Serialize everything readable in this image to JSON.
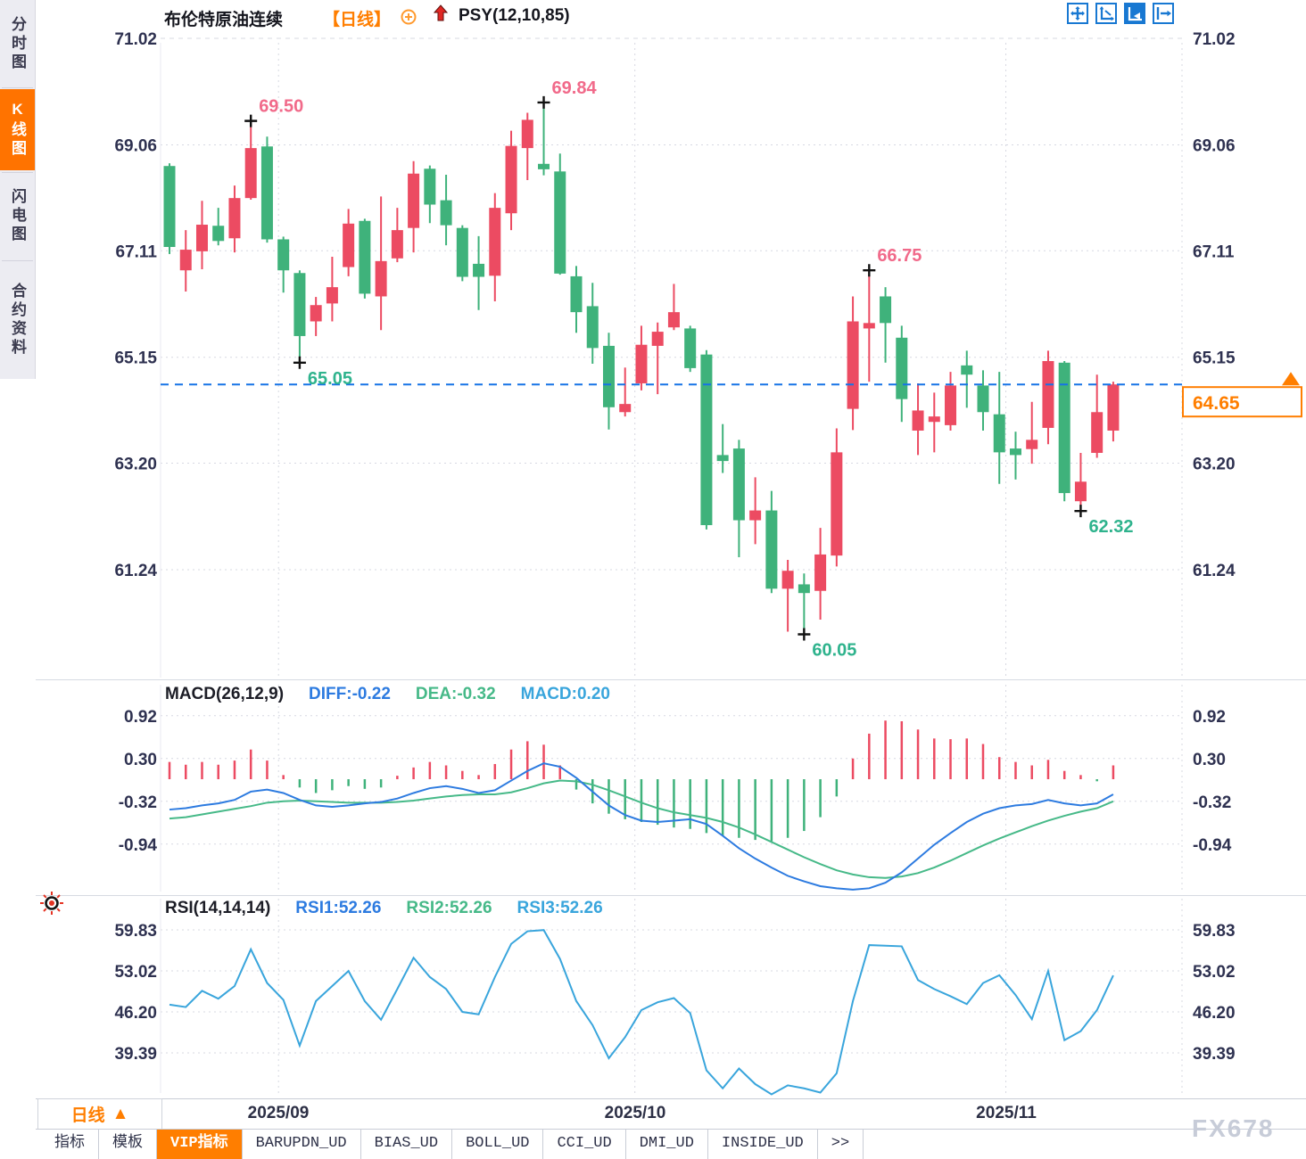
{
  "sidebar": {
    "tabs": [
      {
        "label": "分时图",
        "active": false
      },
      {
        "label": "K线图",
        "active": true
      },
      {
        "label": "闪电图",
        "active": false
      },
      {
        "label": "合约资料",
        "active": false
      }
    ]
  },
  "header": {
    "instrument": "布伦特原油连续",
    "period_tag": "【日线】",
    "indicator": "PSY(12,10,85)",
    "toolbar_icons": [
      "pan-icon",
      "axis-zoom-icon",
      "auto-scale-icon",
      "go-to-latest-icon"
    ]
  },
  "footer": {
    "period_label": "日线",
    "period_arrow": "▲",
    "months": [
      "2025/09",
      "2025/10",
      "2025/11"
    ],
    "tabs": [
      {
        "label": "指标",
        "active": false
      },
      {
        "label": "模板",
        "active": false
      },
      {
        "label": "VIP指标",
        "active": true
      },
      {
        "label": "BARUPDN_UD",
        "active": false
      },
      {
        "label": "BIAS_UD",
        "active": false
      },
      {
        "label": "BOLL_UD",
        "active": false
      },
      {
        "label": "CCI_UD",
        "active": false
      },
      {
        "label": "DMI_UD",
        "active": false
      },
      {
        "label": "INSIDE_UD",
        "active": false
      },
      {
        "label": ">>",
        "active": false
      }
    ],
    "watermark": "FX678"
  },
  "colors": {
    "up": "#ec4b62",
    "down": "#3fb27b",
    "diff_line": "#2d7be0",
    "dea_line": "#46b988",
    "rsi_line": "#39a5dc",
    "accent_orange": "#ff7e00",
    "current_price_line": "#1673e6",
    "toolbar_blue": "#1878d2",
    "annotation_high": "#f16a8a",
    "annotation_low": "#2fb38d",
    "grid": "#d7d8e2",
    "axis_text": "#2e3150"
  },
  "chart_data": [
    {
      "type": "candlestick",
      "title": "布伦特原油连续 日线",
      "y_ticks": [
        71.02,
        69.06,
        67.11,
        65.15,
        63.2,
        61.24
      ],
      "ylim": [
        60.0,
        71.35
      ],
      "month_lines": [
        6.7,
        28.6,
        51.4
      ],
      "candles": [
        [
          68.67,
          67.18,
          68.72,
          67.05
        ],
        [
          66.75,
          67.13,
          67.49,
          66.36
        ],
        [
          67.1,
          67.59,
          68.03,
          66.77
        ],
        [
          67.57,
          67.29,
          67.9,
          67.21
        ],
        [
          67.34,
          68.08,
          68.31,
          67.08
        ],
        [
          68.08,
          69.0,
          69.5,
          68.05
        ],
        [
          69.03,
          67.32,
          69.21,
          67.26
        ],
        [
          67.32,
          66.75,
          67.37,
          66.34
        ],
        [
          66.7,
          65.54,
          66.75,
          65.05
        ],
        [
          65.81,
          66.11,
          66.26,
          65.54
        ],
        [
          66.14,
          66.44,
          67.0,
          65.81
        ],
        [
          66.81,
          67.61,
          67.88,
          66.64
        ],
        [
          67.66,
          66.32,
          67.7,
          66.23
        ],
        [
          66.27,
          66.92,
          68.11,
          65.65
        ],
        [
          66.97,
          67.49,
          67.9,
          66.9
        ],
        [
          67.53,
          68.53,
          68.76,
          67.08
        ],
        [
          68.62,
          67.96,
          68.68,
          67.62
        ],
        [
          68.04,
          67.58,
          68.51,
          67.21
        ],
        [
          67.53,
          66.63,
          67.58,
          66.55
        ],
        [
          66.87,
          66.63,
          67.38,
          66.02
        ],
        [
          66.65,
          67.9,
          68.17,
          66.18
        ],
        [
          67.8,
          69.04,
          69.32,
          67.49
        ],
        [
          69.0,
          69.52,
          69.65,
          68.41
        ],
        [
          68.71,
          68.61,
          69.84,
          68.5
        ],
        [
          68.57,
          66.69,
          68.9,
          66.67
        ],
        [
          66.64,
          65.98,
          66.83,
          65.6
        ],
        [
          66.09,
          65.32,
          66.52,
          65.03
        ],
        [
          65.36,
          64.23,
          65.6,
          63.82
        ],
        [
          64.14,
          64.29,
          64.96,
          64.06
        ],
        [
          64.67,
          65.38,
          65.73,
          64.54
        ],
        [
          65.36,
          65.62,
          65.79,
          64.47
        ],
        [
          65.7,
          65.98,
          66.5,
          65.65
        ],
        [
          65.68,
          64.95,
          65.73,
          64.88
        ],
        [
          65.2,
          62.06,
          65.28,
          61.98
        ],
        [
          63.35,
          63.24,
          63.92,
          63.02
        ],
        [
          63.47,
          62.15,
          63.63,
          61.47
        ],
        [
          62.15,
          62.33,
          62.94,
          61.71
        ],
        [
          62.33,
          60.89,
          62.69,
          60.81
        ],
        [
          60.89,
          61.22,
          61.42,
          60.1
        ],
        [
          60.97,
          60.81,
          61.17,
          60.05
        ],
        [
          60.85,
          61.52,
          62.01,
          60.32
        ],
        [
          61.5,
          63.4,
          63.84,
          61.3
        ],
        [
          64.2,
          65.81,
          66.27,
          63.81
        ],
        [
          65.68,
          65.78,
          66.75,
          64.7
        ],
        [
          66.27,
          65.78,
          66.44,
          65.05
        ],
        [
          65.51,
          64.38,
          65.73,
          63.96
        ],
        [
          63.8,
          64.17,
          64.67,
          63.35
        ],
        [
          63.96,
          64.06,
          64.5,
          63.4
        ],
        [
          63.9,
          64.63,
          64.88,
          63.8
        ],
        [
          65.0,
          64.83,
          65.27,
          64.22
        ],
        [
          64.63,
          64.14,
          64.91,
          63.8
        ],
        [
          64.1,
          63.4,
          64.88,
          62.82
        ],
        [
          63.47,
          63.35,
          63.78,
          62.9
        ],
        [
          63.46,
          63.63,
          64.33,
          63.19
        ],
        [
          63.85,
          65.08,
          65.27,
          63.55
        ],
        [
          65.05,
          62.65,
          65.08,
          62.5
        ],
        [
          62.5,
          62.86,
          63.39,
          62.32
        ],
        [
          63.39,
          64.14,
          64.83,
          63.3
        ],
        [
          63.8,
          64.65,
          64.7,
          63.6
        ]
      ],
      "annotations": [
        {
          "index": 5,
          "type": "high",
          "label": "69.50"
        },
        {
          "index": 8,
          "type": "low",
          "label": "65.05"
        },
        {
          "index": 23,
          "type": "high",
          "label": "69.84"
        },
        {
          "index": 39,
          "type": "low",
          "label": "60.05"
        },
        {
          "index": 43,
          "type": "high",
          "label": "66.75"
        },
        {
          "index": 56,
          "type": "low",
          "label": "62.32"
        }
      ],
      "current_price": {
        "value": 64.65,
        "label": "64.65"
      }
    },
    {
      "type": "bar",
      "title": "MACD(26,12,9)",
      "diff_label": "DIFF:-0.22",
      "dea_label": "DEA:-0.32",
      "macd_label": "MACD:0.20",
      "y_ticks": [
        0.92,
        0.3,
        -0.32,
        -0.94
      ],
      "hist": [
        0.25,
        0.21,
        0.25,
        0.21,
        0.27,
        0.43,
        0.27,
        0.06,
        -0.12,
        -0.2,
        -0.16,
        -0.1,
        -0.14,
        -0.12,
        0.05,
        0.17,
        0.25,
        0.2,
        0.12,
        0.06,
        0.22,
        0.43,
        0.55,
        0.5,
        0.2,
        -0.15,
        -0.35,
        -0.5,
        -0.58,
        -0.62,
        -0.66,
        -0.7,
        -0.72,
        -0.78,
        -0.82,
        -0.85,
        -0.88,
        -0.9,
        -0.85,
        -0.75,
        -0.55,
        -0.25,
        0.3,
        0.66,
        0.85,
        0.84,
        0.72,
        0.59,
        0.58,
        0.59,
        0.51,
        0.32,
        0.25,
        0.2,
        0.28,
        0.12,
        0.06,
        -0.03,
        0.2
      ],
      "diff": [
        -0.44,
        -0.42,
        -0.38,
        -0.35,
        -0.3,
        -0.18,
        -0.15,
        -0.2,
        -0.3,
        -0.38,
        -0.4,
        -0.38,
        -0.35,
        -0.33,
        -0.28,
        -0.2,
        -0.13,
        -0.1,
        -0.14,
        -0.2,
        -0.16,
        -0.02,
        0.12,
        0.23,
        0.18,
        0.02,
        -0.18,
        -0.38,
        -0.52,
        -0.6,
        -0.62,
        -0.6,
        -0.58,
        -0.65,
        -0.82,
        -1.0,
        -1.15,
        -1.28,
        -1.4,
        -1.48,
        -1.55,
        -1.58,
        -1.6,
        -1.58,
        -1.5,
        -1.35,
        -1.15,
        -0.95,
        -0.78,
        -0.62,
        -0.5,
        -0.42,
        -0.38,
        -0.36,
        -0.3,
        -0.35,
        -0.38,
        -0.35,
        -0.22
      ],
      "dea": [
        -0.57,
        -0.55,
        -0.51,
        -0.47,
        -0.43,
        -0.39,
        -0.34,
        -0.32,
        -0.31,
        -0.32,
        -0.33,
        -0.34,
        -0.34,
        -0.34,
        -0.33,
        -0.31,
        -0.28,
        -0.25,
        -0.23,
        -0.22,
        -0.22,
        -0.19,
        -0.13,
        -0.06,
        -0.02,
        -0.03,
        -0.08,
        -0.16,
        -0.25,
        -0.34,
        -0.42,
        -0.48,
        -0.52,
        -0.56,
        -0.62,
        -0.7,
        -0.8,
        -0.91,
        -1.02,
        -1.13,
        -1.23,
        -1.32,
        -1.38,
        -1.42,
        -1.43,
        -1.41,
        -1.36,
        -1.28,
        -1.18,
        -1.07,
        -0.96,
        -0.86,
        -0.77,
        -0.68,
        -0.6,
        -0.53,
        -0.47,
        -0.42,
        -0.32
      ]
    },
    {
      "type": "line",
      "title": "RSI(14,14,14)",
      "lines": [
        "RSI1:52.26",
        "RSI2:52.26",
        "RSI3:52.26"
      ],
      "y_ticks": [
        59.83,
        53.02,
        46.2,
        39.39
      ],
      "values": [
        47.4,
        47.0,
        49.7,
        48.4,
        50.5,
        56.6,
        51.0,
        48.2,
        40.6,
        48.0,
        50.5,
        53.0,
        48.0,
        44.9,
        50.0,
        55.2,
        52.0,
        50.0,
        46.2,
        45.8,
        52.0,
        57.5,
        59.6,
        59.8,
        55.0,
        48.0,
        44.0,
        38.5,
        42.0,
        46.5,
        47.8,
        48.5,
        46.0,
        36.5,
        33.5,
        36.8,
        34.2,
        32.5,
        34.0,
        33.5,
        32.8,
        36.0,
        48.0,
        57.3,
        57.2,
        57.1,
        51.5,
        50.0,
        48.8,
        47.5,
        51.0,
        52.3,
        49.0,
        45.0,
        53.0,
        41.5,
        43.0,
        46.5,
        52.26
      ]
    }
  ]
}
